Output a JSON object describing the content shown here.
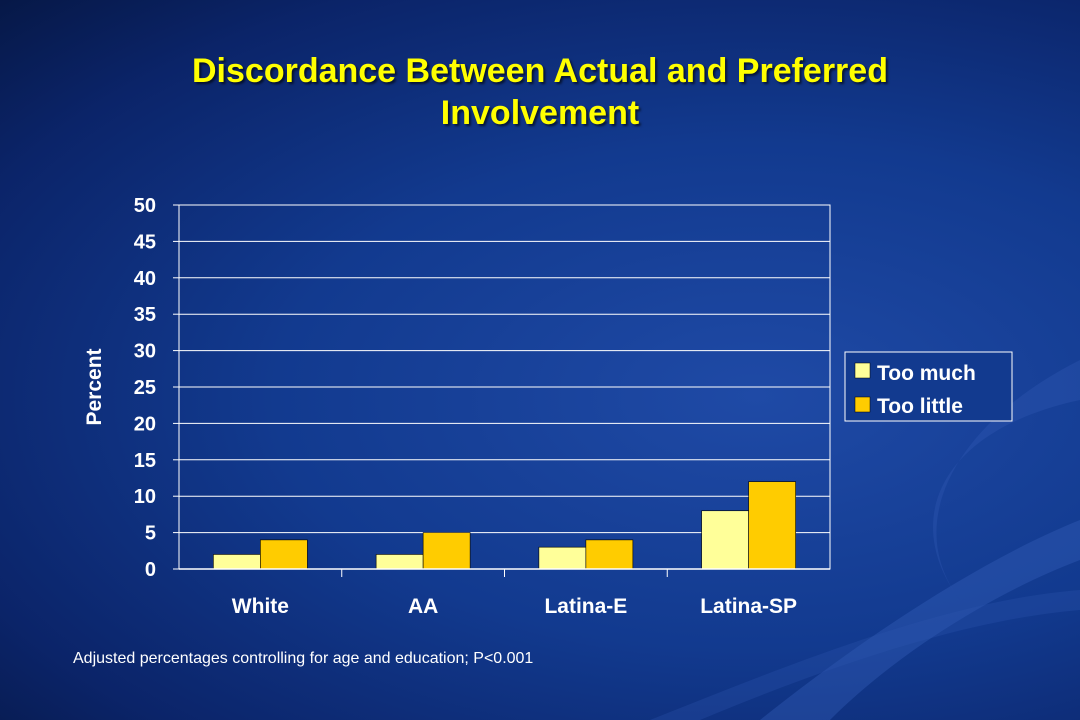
{
  "title_line1": "Discordance Between Actual and Preferred",
  "title_line2": "Involvement",
  "footnote": "Adjusted percentages controlling for  age and education; P<0.001",
  "colors": {
    "too_much": "#ffff99",
    "too_little": "#ffcc00",
    "title": "#ffff00"
  },
  "chart_data": {
    "type": "bar",
    "categories": [
      "White",
      "AA",
      "Latina-E",
      "Latina-SP"
    ],
    "series": [
      {
        "name": "Too much",
        "values": [
          2,
          2,
          3,
          8
        ]
      },
      {
        "name": "Too little",
        "values": [
          4,
          5,
          4,
          12
        ]
      }
    ],
    "ylabel": "Percent",
    "ylim": [
      0,
      50
    ],
    "yticks": [
      0,
      5,
      10,
      15,
      20,
      25,
      30,
      35,
      40,
      45,
      50
    ],
    "grid": true,
    "legend": "right"
  }
}
